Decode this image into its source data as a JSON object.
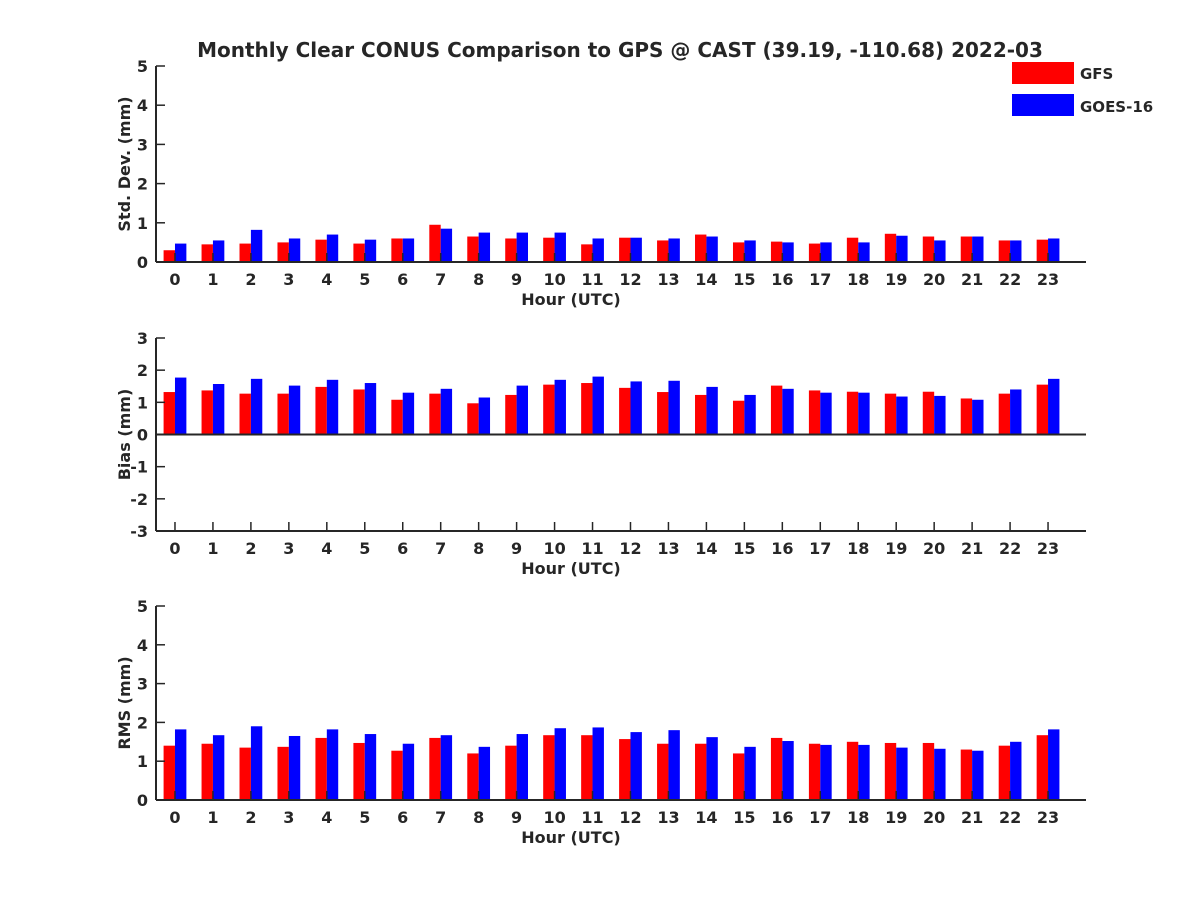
{
  "title": "Monthly Clear CONUS Comparison to GPS @ CAST (39.19, -110.68) 2022-03",
  "legend": {
    "placement": "top-right",
    "entries": [
      {
        "name": "GFS",
        "color": "#ff0000"
      },
      {
        "name": "GOES-16",
        "color": "#0000ff"
      }
    ]
  },
  "chart_data": [
    {
      "type": "bar",
      "title": "Monthly Clear CONUS Comparison to GPS @ CAST (39.19, -110.68) 2022-03",
      "xlabel": "Hour (UTC)",
      "ylabel": "Std. Dev. (mm)",
      "ylim": [
        0,
        5
      ],
      "yticks": [
        0,
        1,
        2,
        3,
        4,
        5
      ],
      "categories": [
        "0",
        "1",
        "2",
        "3",
        "4",
        "5",
        "6",
        "7",
        "8",
        "9",
        "10",
        "11",
        "12",
        "13",
        "14",
        "15",
        "16",
        "17",
        "18",
        "19",
        "20",
        "21",
        "22",
        "23"
      ],
      "series": [
        {
          "name": "GFS",
          "color": "#ff0000",
          "values": [
            0.3,
            0.45,
            0.47,
            0.5,
            0.57,
            0.47,
            0.6,
            0.95,
            0.65,
            0.6,
            0.62,
            0.45,
            0.62,
            0.55,
            0.7,
            0.5,
            0.52,
            0.47,
            0.62,
            0.72,
            0.65,
            0.65,
            0.55,
            0.57
          ]
        },
        {
          "name": "GOES-16",
          "color": "#0000ff",
          "values": [
            0.47,
            0.55,
            0.82,
            0.6,
            0.7,
            0.57,
            0.6,
            0.85,
            0.75,
            0.75,
            0.75,
            0.6,
            0.62,
            0.6,
            0.65,
            0.55,
            0.5,
            0.5,
            0.5,
            0.67,
            0.55,
            0.65,
            0.55,
            0.6
          ]
        }
      ]
    },
    {
      "type": "bar",
      "xlabel": "Hour (UTC)",
      "ylabel": "Bias (mm)",
      "ylim": [
        -3,
        3
      ],
      "yticks": [
        -3,
        -2,
        -1,
        0,
        1,
        2,
        3
      ],
      "categories": [
        "0",
        "1",
        "2",
        "3",
        "4",
        "5",
        "6",
        "7",
        "8",
        "9",
        "10",
        "11",
        "12",
        "13",
        "14",
        "15",
        "16",
        "17",
        "18",
        "19",
        "20",
        "21",
        "22",
        "23"
      ],
      "series": [
        {
          "name": "GFS",
          "color": "#ff0000",
          "values": [
            1.32,
            1.37,
            1.27,
            1.27,
            1.48,
            1.4,
            1.08,
            1.27,
            0.97,
            1.23,
            1.55,
            1.6,
            1.45,
            1.32,
            1.23,
            1.05,
            1.52,
            1.37,
            1.33,
            1.27,
            1.33,
            1.12,
            1.27,
            1.55
          ]
        },
        {
          "name": "GOES-16",
          "color": "#0000ff",
          "values": [
            1.77,
            1.57,
            1.73,
            1.52,
            1.7,
            1.6,
            1.3,
            1.42,
            1.15,
            1.52,
            1.7,
            1.8,
            1.65,
            1.67,
            1.48,
            1.23,
            1.42,
            1.3,
            1.3,
            1.18,
            1.2,
            1.08,
            1.4,
            1.73
          ]
        }
      ]
    },
    {
      "type": "bar",
      "xlabel": "Hour (UTC)",
      "ylabel": "RMS (mm)",
      "ylim": [
        0,
        5
      ],
      "yticks": [
        0,
        1,
        2,
        3,
        4,
        5
      ],
      "categories": [
        "0",
        "1",
        "2",
        "3",
        "4",
        "5",
        "6",
        "7",
        "8",
        "9",
        "10",
        "11",
        "12",
        "13",
        "14",
        "15",
        "16",
        "17",
        "18",
        "19",
        "20",
        "21",
        "22",
        "23"
      ],
      "series": [
        {
          "name": "GFS",
          "color": "#ff0000",
          "values": [
            1.4,
            1.45,
            1.35,
            1.37,
            1.6,
            1.47,
            1.27,
            1.6,
            1.2,
            1.4,
            1.67,
            1.67,
            1.57,
            1.45,
            1.45,
            1.2,
            1.6,
            1.45,
            1.5,
            1.47,
            1.47,
            1.3,
            1.4,
            1.67
          ]
        },
        {
          "name": "GOES-16",
          "color": "#0000ff",
          "values": [
            1.82,
            1.67,
            1.9,
            1.65,
            1.82,
            1.7,
            1.45,
            1.67,
            1.37,
            1.7,
            1.85,
            1.87,
            1.75,
            1.8,
            1.62,
            1.37,
            1.52,
            1.42,
            1.42,
            1.35,
            1.32,
            1.27,
            1.5,
            1.82
          ]
        }
      ]
    }
  ]
}
